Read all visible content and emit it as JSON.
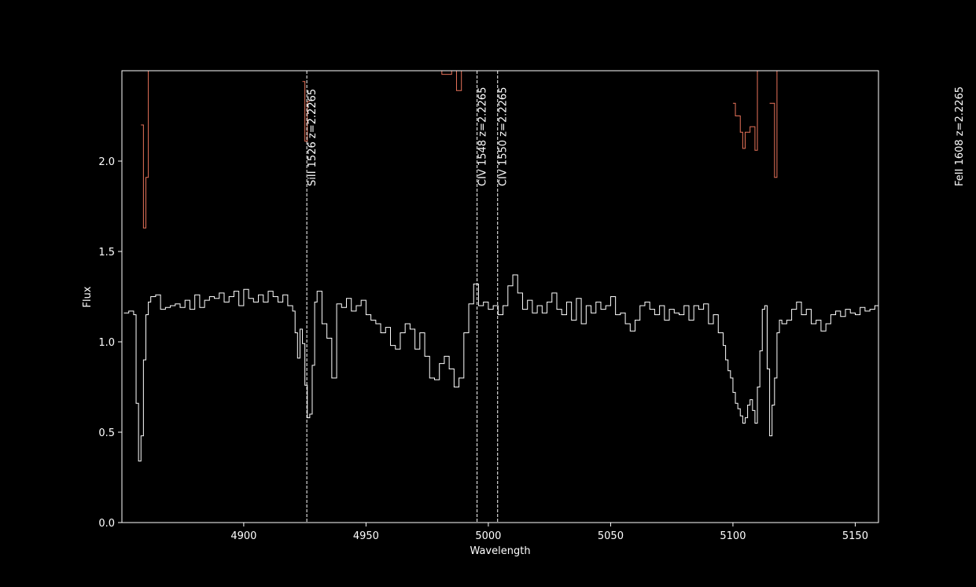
{
  "chart_data": {
    "type": "line",
    "title": "",
    "xlabel": "Wavelength",
    "ylabel": "Flux",
    "xlim": [
      4850.2,
      5159.5
    ],
    "ylim": [
      0.0,
      2.5
    ],
    "xticks": [
      4900,
      4950,
      5000,
      5050,
      5100,
      5150
    ],
    "yticks": [
      "0.0",
      "0.5",
      "1.0",
      "1.5",
      "2.0"
    ],
    "ytick_values": [
      0.0,
      0.5,
      1.0,
      1.5,
      2.0
    ],
    "grid": false,
    "colors": {
      "background": "#000000",
      "axes": "#ffffff",
      "flux": "#ffffff",
      "error": "#e8735a",
      "lines": "#ffffff"
    },
    "absorption_lines": [
      {
        "label": "SiII 1526  z=2.2265",
        "wavelength": 4925.8
      },
      {
        "label": "CIV 1548  z=2.2265",
        "wavelength": 4995.4
      },
      {
        "label": "CIV 1550  z=2.2265",
        "wavelength": 5003.8
      },
      {
        "label": "FeII 1608  z=2.2265",
        "wavelength": 5190.5
      }
    ],
    "series": [
      {
        "role": "flux",
        "style": "steps",
        "x": [
          4851,
          4853,
          4855,
          4856,
          4857,
          4858,
          4859,
          4860,
          4861,
          4862,
          4864,
          4866,
          4868,
          4870,
          4872,
          4874,
          4876,
          4878,
          4880,
          4882,
          4884,
          4886,
          4888,
          4890,
          4892,
          4894,
          4896,
          4898,
          4900,
          4902,
          4904,
          4906,
          4908,
          4910,
          4912,
          4914,
          4916,
          4918,
          4920,
          4921,
          4922,
          4923,
          4924,
          4925,
          4926,
          4927,
          4928,
          4929,
          4930,
          4932,
          4934,
          4936,
          4938,
          4940,
          4942,
          4944,
          4946,
          4948,
          4950,
          4952,
          4954,
          4956,
          4958,
          4960,
          4962,
          4964,
          4966,
          4968,
          4970,
          4972,
          4974,
          4976,
          4978,
          4980,
          4982,
          4984,
          4986,
          4988,
          4990,
          4992,
          4994,
          4996,
          4998,
          5000,
          5002,
          5004,
          5006,
          5008,
          5010,
          5012,
          5014,
          5016,
          5018,
          5020,
          5022,
          5024,
          5026,
          5028,
          5030,
          5032,
          5034,
          5036,
          5038,
          5040,
          5042,
          5044,
          5046,
          5048,
          5050,
          5052,
          5054,
          5056,
          5058,
          5060,
          5062,
          5064,
          5066,
          5068,
          5070,
          5072,
          5074,
          5076,
          5078,
          5080,
          5082,
          5084,
          5086,
          5088,
          5090,
          5092,
          5094,
          5096,
          5097,
          5098,
          5099,
          5100,
          5101,
          5102,
          5103,
          5104,
          5105,
          5106,
          5107,
          5108,
          5109,
          5110,
          5111,
          5112,
          5113,
          5114,
          5115,
          5116,
          5117,
          5118,
          5119,
          5120,
          5122,
          5124,
          5126,
          5128,
          5130,
          5132,
          5134,
          5136,
          5138,
          5140,
          5142,
          5144,
          5146,
          5148,
          5150,
          5152,
          5154,
          5156,
          5158
        ],
        "y": [
          1.16,
          1.17,
          1.15,
          0.66,
          0.34,
          0.48,
          0.9,
          1.15,
          1.22,
          1.25,
          1.26,
          1.18,
          1.19,
          1.2,
          1.21,
          1.19,
          1.23,
          1.18,
          1.26,
          1.19,
          1.23,
          1.25,
          1.24,
          1.27,
          1.22,
          1.25,
          1.28,
          1.2,
          1.29,
          1.24,
          1.22,
          1.26,
          1.22,
          1.28,
          1.25,
          1.22,
          1.26,
          1.2,
          1.17,
          1.05,
          0.91,
          1.07,
          0.99,
          0.76,
          0.58,
          0.6,
          0.87,
          1.22,
          1.28,
          1.1,
          1.02,
          0.8,
          1.21,
          1.19,
          1.24,
          1.17,
          1.2,
          1.23,
          1.15,
          1.12,
          1.1,
          1.05,
          1.08,
          0.98,
          0.96,
          1.05,
          1.1,
          1.07,
          0.96,
          1.05,
          0.92,
          0.8,
          0.79,
          0.88,
          0.92,
          0.85,
          0.75,
          0.8,
          1.05,
          1.21,
          1.32,
          1.2,
          1.22,
          1.18,
          1.2,
          1.15,
          1.2,
          1.31,
          1.37,
          1.27,
          1.18,
          1.23,
          1.16,
          1.2,
          1.16,
          1.22,
          1.27,
          1.18,
          1.15,
          1.22,
          1.12,
          1.24,
          1.1,
          1.2,
          1.16,
          1.22,
          1.18,
          1.2,
          1.25,
          1.15,
          1.16,
          1.1,
          1.06,
          1.12,
          1.2,
          1.22,
          1.18,
          1.15,
          1.2,
          1.12,
          1.18,
          1.16,
          1.15,
          1.2,
          1.12,
          1.2,
          1.18,
          1.21,
          1.1,
          1.15,
          1.05,
          0.98,
          0.9,
          0.84,
          0.8,
          0.72,
          0.66,
          0.63,
          0.59,
          0.55,
          0.58,
          0.65,
          0.68,
          0.62,
          0.55,
          0.75,
          0.95,
          1.18,
          1.2,
          0.85,
          0.48,
          0.65,
          0.8,
          1.05,
          1.12,
          1.1,
          1.12,
          1.18,
          1.22,
          1.15,
          1.18,
          1.1,
          1.12,
          1.06,
          1.1,
          1.15,
          1.17,
          1.14,
          1.18,
          1.16,
          1.15,
          1.19,
          1.17,
          1.18,
          1.2
        ]
      },
      {
        "role": "error",
        "style": "steps",
        "x": [
          4858,
          4859,
          4860,
          4861
        ],
        "y": [
          2.2,
          1.63,
          1.91,
          2.6
        ]
      },
      {
        "role": "error",
        "style": "steps",
        "x": [
          4924,
          4925,
          4926
        ],
        "y": [
          2.44,
          2.11,
          2.33
        ]
      },
      {
        "role": "error",
        "style": "steps",
        "x": [
          4979,
          4981,
          4985,
          4987,
          4989
        ],
        "y": [
          2.51,
          2.48,
          2.51,
          2.39,
          2.6
        ]
      },
      {
        "role": "error",
        "style": "steps",
        "x": [
          5100,
          5101,
          5103,
          5104,
          5105,
          5107,
          5109,
          5110
        ],
        "y": [
          2.32,
          2.25,
          2.16,
          2.07,
          2.16,
          2.19,
          2.06,
          2.6
        ]
      },
      {
        "role": "error",
        "style": "steps",
        "x": [
          5115,
          5117,
          5118
        ],
        "y": [
          2.32,
          1.91,
          2.6
        ]
      }
    ]
  }
}
